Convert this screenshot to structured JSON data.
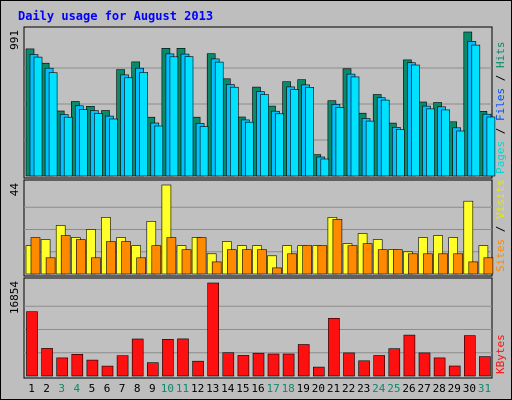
{
  "title": "Daily usage for August 2013",
  "colors": {
    "frame_bg": "#bebebe",
    "plot_bg": "#c0c0c0",
    "title_text": "#0000ff",
    "hits": "#0a8a6a",
    "files": "#00c0ff",
    "pages": "#00e0ff",
    "visits": "#ffff2a",
    "sites": "#ff8a00",
    "kbytes": "#ff1010",
    "weekend_day": "#0a8a6a",
    "weekday": "#000000"
  },
  "chart_data": {
    "type": "bar",
    "title": "Daily usage for August 2013",
    "days": [
      "1",
      "2",
      "3",
      "4",
      "5",
      "6",
      "7",
      "8",
      "9",
      "10",
      "11",
      "12",
      "13",
      "14",
      "15",
      "16",
      "17",
      "18",
      "19",
      "20",
      "21",
      "22",
      "23",
      "24",
      "25",
      "26",
      "27",
      "28",
      "29",
      "30",
      "31"
    ],
    "weekend_days": [
      "3",
      "4",
      "10",
      "11",
      "17",
      "18",
      "24",
      "25",
      "31"
    ],
    "panels": [
      {
        "name": "hits-files-pages",
        "max_label": "991",
        "ymax": 991,
        "legend": [
          {
            "text": "Pages",
            "color": "#00d8d8"
          },
          {
            "text": " / ",
            "color": "#000000"
          },
          {
            "text": "Files",
            "color": "#0050ff"
          },
          {
            "text": " / ",
            "color": "#000000"
          },
          {
            "text": "Hits",
            "color": "#0a8a6a"
          }
        ],
        "series": [
          {
            "name": "Hits",
            "color": "#0a8a6a",
            "values": [
              875,
              776,
              447,
              513,
              480,
              451,
              732,
              785,
              405,
              879,
              879,
              405,
              842,
              669,
              406,
              612,
              481,
              649,
              663,
              147,
              518,
              738,
              432,
              561,
              364,
              799,
              509,
              506,
              373,
              991,
              445
            ]
          },
          {
            "name": "Files",
            "color": "#00c0ff",
            "values": [
              836,
              742,
              423,
              483,
              450,
              412,
              696,
              742,
              365,
              840,
              839,
              362,
              806,
              630,
              386,
              580,
              446,
              613,
              627,
              131,
              493,
              701,
              396,
              539,
              335,
              780,
              481,
              476,
              332,
              926,
              425
            ]
          },
          {
            "name": "Pages",
            "color": "#00e0ff",
            "values": [
              818,
              711,
              405,
              456,
              430,
              392,
              676,
              712,
              344,
              820,
              822,
              340,
              784,
              611,
              370,
              560,
              428,
              596,
              610,
              117,
              472,
              682,
              378,
              522,
              319,
              764,
              462,
              455,
              310,
              901,
              406
            ]
          }
        ]
      },
      {
        "name": "sites-visits",
        "max_label": "44",
        "ymax": 44,
        "legend": [
          {
            "text": "Sites",
            "color": "#ff8a00"
          },
          {
            "text": " / ",
            "color": "#000000"
          },
          {
            "text": "Visits",
            "color": "#e8e800"
          }
        ],
        "series": [
          {
            "name": "Visits",
            "color": "#ffff2a",
            "values": [
              14,
              17,
              24,
              18,
              22,
              28,
              18,
              14,
              26,
              44,
              14,
              18,
              10,
              16,
              14,
              14,
              9,
              14,
              14,
              14,
              28,
              15,
              20,
              17,
              12,
              11,
              18,
              19,
              18,
              36,
              14
            ]
          },
          {
            "name": "Sites",
            "color": "#ff8a00",
            "values": [
              18,
              8,
              19,
              17,
              8,
              16,
              16,
              8,
              14,
              18,
              12,
              18,
              6,
              12,
              12,
              12,
              3,
              10,
              14,
              14,
              27,
              14,
              15,
              12,
              12,
              10,
              10,
              10,
              10,
              6,
              8
            ]
          }
        ]
      },
      {
        "name": "kbytes",
        "max_label": "16854",
        "ymax": 16854,
        "legend": [
          {
            "text": "KBytes",
            "color": "#ff1010"
          }
        ],
        "series": [
          {
            "name": "KBytes",
            "color": "#ff1010",
            "values": [
              11650,
              5000,
              3280,
              3940,
              2880,
              1800,
              3680,
              6700,
              2410,
              6660,
              6720,
              2680,
              16854,
              4230,
              3740,
              4130,
              3980,
              3980,
              5710,
              1620,
              10450,
              4190,
              2750,
              3710,
              4940,
              7410,
              4190,
              3280,
              1810,
              7330,
              3520
            ]
          }
        ]
      }
    ]
  }
}
